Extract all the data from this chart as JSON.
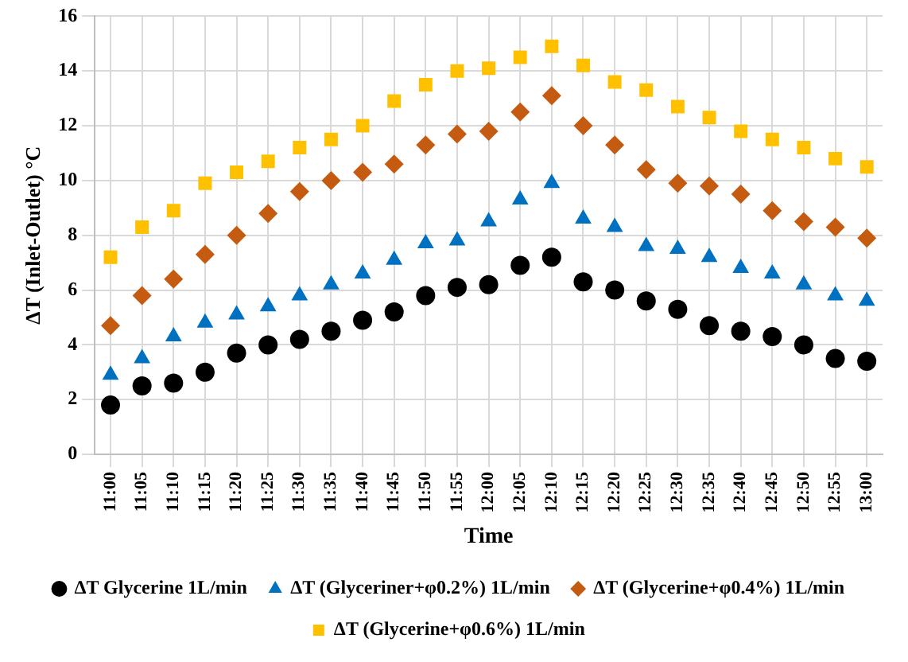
{
  "chart_data": {
    "type": "scatter",
    "xlabel": "Time",
    "ylabel": "ΔT (Inlet-Outlet) °C",
    "categories": [
      "11:00",
      "11:05",
      "11:10",
      "11:15",
      "11:20",
      "11:25",
      "11:30",
      "11:35",
      "11:40",
      "11:45",
      "11:50",
      "11:55",
      "12:00",
      "12:05",
      "12:10",
      "12:15",
      "12:20",
      "12:25",
      "12:30",
      "12:35",
      "12:40",
      "12:45",
      "12:50",
      "12:55",
      "13:00"
    ],
    "ylim": [
      0,
      16
    ],
    "yticks": [
      0,
      2,
      4,
      6,
      8,
      10,
      12,
      14,
      16
    ],
    "grid": true,
    "legend": "bottom",
    "series": [
      {
        "name": "ΔT Glycerine 1L/min",
        "color": "#000000",
        "marker": "circle",
        "values": [
          1.8,
          2.5,
          2.6,
          3.0,
          3.7,
          4.0,
          4.2,
          4.5,
          4.9,
          5.2,
          5.8,
          6.1,
          6.2,
          6.9,
          7.2,
          6.3,
          6.0,
          5.6,
          5.3,
          4.7,
          4.5,
          4.3,
          4.0,
          3.5,
          3.4
        ]
      },
      {
        "name": "ΔT (Glyceriner+φ0.2%) 1L/min",
        "color": "#0070c0",
        "marker": "triangle",
        "values": [
          2.9,
          3.5,
          4.3,
          4.8,
          5.1,
          5.4,
          5.8,
          6.2,
          6.6,
          7.1,
          7.7,
          7.8,
          8.5,
          9.3,
          9.9,
          8.6,
          8.3,
          7.6,
          7.5,
          7.2,
          6.8,
          6.6,
          6.2,
          5.8,
          5.6
        ]
      },
      {
        "name": "ΔT (Glycerine+φ0.4%) 1L/min",
        "color": "#c55a11",
        "marker": "diamond",
        "values": [
          4.7,
          5.8,
          6.4,
          7.3,
          8.0,
          8.8,
          9.6,
          10.0,
          10.3,
          10.6,
          11.3,
          11.7,
          11.8,
          12.5,
          13.1,
          12.0,
          11.3,
          10.4,
          9.9,
          9.8,
          9.5,
          8.9,
          8.5,
          8.3,
          7.9
        ]
      },
      {
        "name": "ΔT (Glycerine+φ0.6%) 1L/min",
        "color": "#ffc000",
        "marker": "square",
        "values": [
          7.2,
          8.3,
          8.9,
          9.9,
          10.3,
          10.7,
          11.2,
          11.5,
          12.0,
          12.9,
          13.5,
          14.0,
          14.1,
          14.5,
          14.9,
          14.2,
          13.6,
          13.3,
          12.7,
          12.3,
          11.8,
          11.5,
          11.2,
          10.8,
          10.5
        ]
      }
    ]
  }
}
